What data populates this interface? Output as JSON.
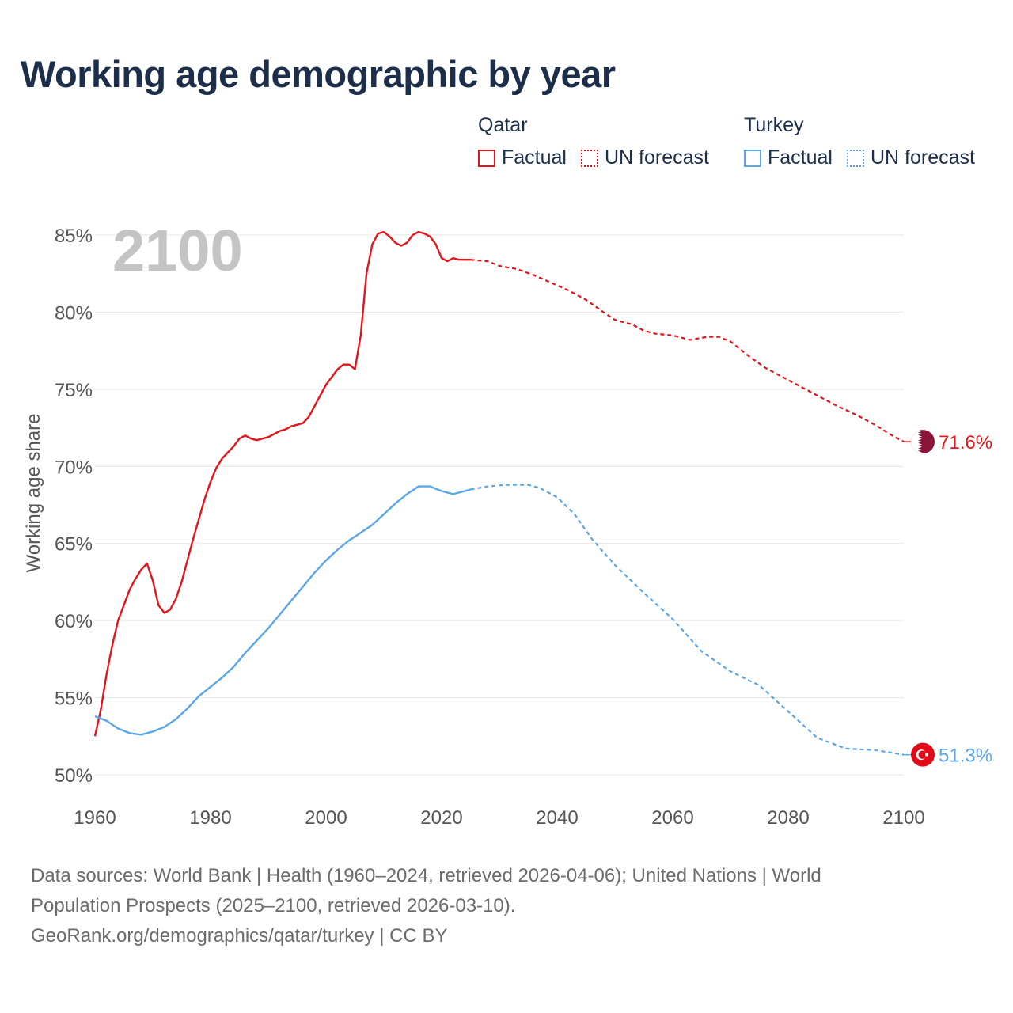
{
  "title": "Working age demographic by year",
  "legend": {
    "groups": [
      {
        "name": "Qatar",
        "color": "#e4141b",
        "factual_label": "Factual",
        "forecast_label": "UN forecast"
      },
      {
        "name": "Turkey",
        "color": "#5ba6e6",
        "factual_label": "Factual",
        "forecast_label": "UN forecast"
      }
    ]
  },
  "year_label": "2100",
  "footer": {
    "line1": "Data sources: World Bank | Health (1960–2024, retrieved 2026-04-06); United Nations | World",
    "line2": "Population Prospects (2025–2100, retrieved 2026-03-10).",
    "line3": "GeoRank.org/demographics/qatar/turkey | CC BY"
  },
  "colors": {
    "qatar": "#e4141b",
    "turkey": "#5ba6e6",
    "grid": "#e5e5e5",
    "axis_text": "#555555"
  },
  "chart_data": {
    "type": "line",
    "title": "Working age demographic by year",
    "xlabel": "",
    "ylabel": "Working age share",
    "xlim": [
      1960,
      2100
    ],
    "ylim": [
      50,
      85
    ],
    "x_ticks": [
      1960,
      1980,
      2000,
      2020,
      2040,
      2060,
      2080,
      2100
    ],
    "y_ticks": [
      50,
      55,
      60,
      65,
      70,
      75,
      80,
      85
    ],
    "y_tick_labels": [
      "50%",
      "55%",
      "60%",
      "65%",
      "70%",
      "75%",
      "80%",
      "85%"
    ],
    "forecast_start": 2025,
    "series": [
      {
        "name": "Qatar",
        "end_label": "71.6%",
        "points": [
          [
            1960,
            52.5
          ],
          [
            1961,
            54.2
          ],
          [
            1962,
            56.5
          ],
          [
            1963,
            58.4
          ],
          [
            1964,
            60.0
          ],
          [
            1965,
            61.0
          ],
          [
            1966,
            62.0
          ],
          [
            1967,
            62.7
          ],
          [
            1968,
            63.3
          ],
          [
            1969,
            63.7
          ],
          [
            1970,
            62.6
          ],
          [
            1971,
            61.0
          ],
          [
            1972,
            60.5
          ],
          [
            1973,
            60.7
          ],
          [
            1974,
            61.4
          ],
          [
            1975,
            62.5
          ],
          [
            1976,
            63.9
          ],
          [
            1977,
            65.3
          ],
          [
            1978,
            66.6
          ],
          [
            1979,
            67.9
          ],
          [
            1980,
            69.0
          ],
          [
            1981,
            69.9
          ],
          [
            1982,
            70.5
          ],
          [
            1983,
            70.9
          ],
          [
            1984,
            71.3
          ],
          [
            1985,
            71.8
          ],
          [
            1986,
            72.0
          ],
          [
            1987,
            71.8
          ],
          [
            1988,
            71.7
          ],
          [
            1989,
            71.8
          ],
          [
            1990,
            71.9
          ],
          [
            1991,
            72.1
          ],
          [
            1992,
            72.3
          ],
          [
            1993,
            72.4
          ],
          [
            1994,
            72.6
          ],
          [
            1995,
            72.7
          ],
          [
            1996,
            72.8
          ],
          [
            1997,
            73.2
          ],
          [
            1998,
            73.9
          ],
          [
            1999,
            74.6
          ],
          [
            2000,
            75.3
          ],
          [
            2001,
            75.8
          ],
          [
            2002,
            76.3
          ],
          [
            2003,
            76.6
          ],
          [
            2004,
            76.6
          ],
          [
            2005,
            76.3
          ],
          [
            2006,
            78.5
          ],
          [
            2007,
            82.5
          ],
          [
            2008,
            84.4
          ],
          [
            2009,
            85.1
          ],
          [
            2010,
            85.2
          ],
          [
            2011,
            84.9
          ],
          [
            2012,
            84.5
          ],
          [
            2013,
            84.3
          ],
          [
            2014,
            84.5
          ],
          [
            2015,
            85.0
          ],
          [
            2016,
            85.2
          ],
          [
            2017,
            85.1
          ],
          [
            2018,
            84.9
          ],
          [
            2019,
            84.4
          ],
          [
            2020,
            83.5
          ],
          [
            2021,
            83.3
          ],
          [
            2022,
            83.5
          ],
          [
            2023,
            83.4
          ],
          [
            2024,
            83.4
          ],
          [
            2025,
            83.4
          ],
          [
            2028,
            83.3
          ],
          [
            2030,
            83.0
          ],
          [
            2033,
            82.8
          ],
          [
            2036,
            82.4
          ],
          [
            2039,
            81.9
          ],
          [
            2042,
            81.4
          ],
          [
            2045,
            80.8
          ],
          [
            2048,
            80.0
          ],
          [
            2050,
            79.5
          ],
          [
            2053,
            79.2
          ],
          [
            2055,
            78.8
          ],
          [
            2057,
            78.6
          ],
          [
            2060,
            78.5
          ],
          [
            2063,
            78.2
          ],
          [
            2066,
            78.4
          ],
          [
            2068,
            78.4
          ],
          [
            2070,
            78.1
          ],
          [
            2073,
            77.2
          ],
          [
            2076,
            76.4
          ],
          [
            2080,
            75.6
          ],
          [
            2084,
            74.8
          ],
          [
            2088,
            74.0
          ],
          [
            2092,
            73.3
          ],
          [
            2095,
            72.7
          ],
          [
            2098,
            72.0
          ],
          [
            2100,
            71.6
          ]
        ]
      },
      {
        "name": "Turkey",
        "end_label": "51.3%",
        "points": [
          [
            1960,
            53.8
          ],
          [
            1962,
            53.5
          ],
          [
            1964,
            53.0
          ],
          [
            1966,
            52.7
          ],
          [
            1968,
            52.6
          ],
          [
            1970,
            52.8
          ],
          [
            1972,
            53.1
          ],
          [
            1974,
            53.6
          ],
          [
            1976,
            54.3
          ],
          [
            1978,
            55.1
          ],
          [
            1980,
            55.7
          ],
          [
            1982,
            56.3
          ],
          [
            1984,
            57.0
          ],
          [
            1986,
            57.9
          ],
          [
            1988,
            58.7
          ],
          [
            1990,
            59.5
          ],
          [
            1992,
            60.4
          ],
          [
            1994,
            61.3
          ],
          [
            1996,
            62.2
          ],
          [
            1998,
            63.1
          ],
          [
            2000,
            63.9
          ],
          [
            2002,
            64.6
          ],
          [
            2004,
            65.2
          ],
          [
            2006,
            65.7
          ],
          [
            2008,
            66.2
          ],
          [
            2010,
            66.9
          ],
          [
            2012,
            67.6
          ],
          [
            2014,
            68.2
          ],
          [
            2016,
            68.7
          ],
          [
            2018,
            68.7
          ],
          [
            2020,
            68.4
          ],
          [
            2022,
            68.2
          ],
          [
            2024,
            68.4
          ],
          [
            2025,
            68.5
          ],
          [
            2028,
            68.7
          ],
          [
            2031,
            68.8
          ],
          [
            2035,
            68.8
          ],
          [
            2037,
            68.6
          ],
          [
            2040,
            68.0
          ],
          [
            2043,
            66.9
          ],
          [
            2046,
            65.3
          ],
          [
            2050,
            63.6
          ],
          [
            2055,
            61.8
          ],
          [
            2060,
            60.1
          ],
          [
            2065,
            58.0
          ],
          [
            2070,
            56.7
          ],
          [
            2075,
            55.8
          ],
          [
            2080,
            54.1
          ],
          [
            2085,
            52.4
          ],
          [
            2090,
            51.7
          ],
          [
            2095,
            51.6
          ],
          [
            2100,
            51.3
          ]
        ]
      }
    ]
  }
}
